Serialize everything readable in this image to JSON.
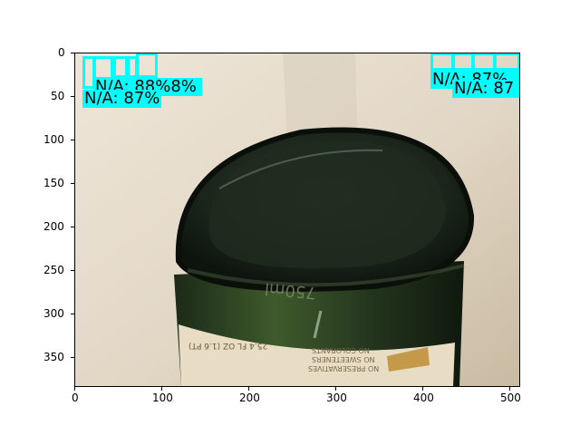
{
  "image": {
    "subject": "green-glass-bottle-bottom",
    "bottle_embossing": "750ml",
    "label_fragments": [
      "25.4 FL OZ (1.6 PT)",
      "NO COLORANTS",
      "NO SWEETENERS",
      "NO PRESERVATIVES"
    ]
  },
  "axes": {
    "x_ticks": [
      "0",
      "100",
      "200",
      "300",
      "400",
      "500"
    ],
    "y_ticks": [
      "0",
      "50",
      "100",
      "150",
      "200",
      "250",
      "300",
      "350"
    ],
    "xlim": [
      0,
      512
    ],
    "ylim": [
      384,
      0
    ]
  },
  "detections": {
    "box_color": "#00ffff",
    "labels": [
      {
        "text": "N/A: 88%8%"
      },
      {
        "text": "N/A: 87%"
      },
      {
        "text": "N/A: 87%"
      },
      {
        "text": "N/A: 87"
      }
    ]
  }
}
